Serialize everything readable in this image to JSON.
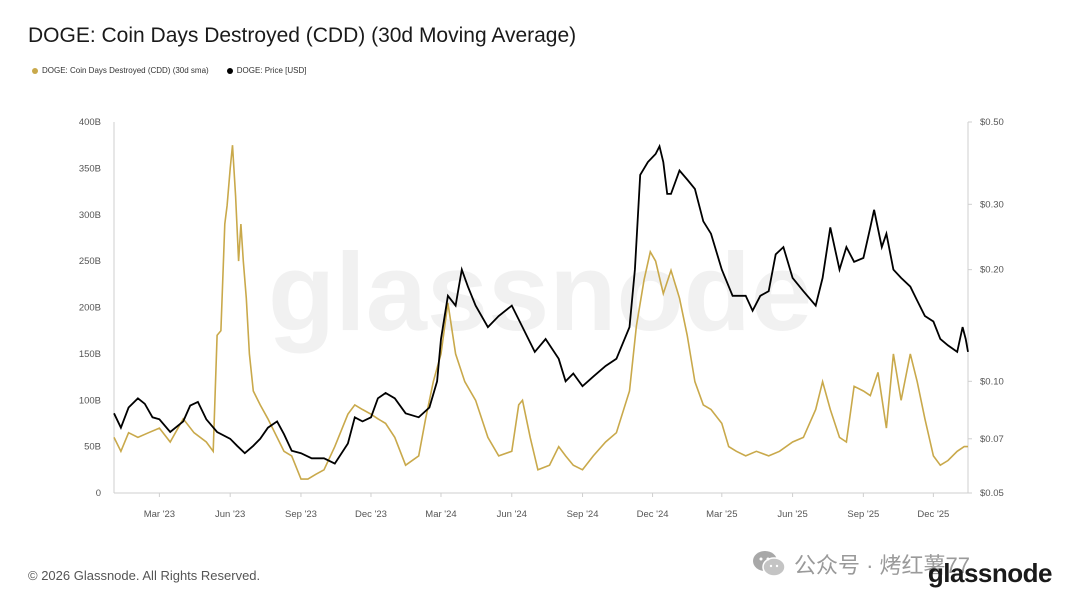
{
  "header": {
    "title": "DOGE: Coin Days Destroyed (CDD) (30d Moving Average)"
  },
  "legend": [
    {
      "label": "DOGE: Coin Days Destroyed (CDD) (30d sma)",
      "color": "#c9a94b"
    },
    {
      "label": "DOGE: Price [USD]",
      "color": "#000000"
    }
  ],
  "watermark": "glassnode",
  "footer": {
    "copyright": "© 2026 Glassnode. All Rights Reserved.",
    "brand": "glassnode"
  },
  "wechat": {
    "label": "公众号 · 烤红薯77"
  },
  "chart_data": {
    "type": "line",
    "title": "DOGE: Coin Days Destroyed (CDD) (30d Moving Average)",
    "x_range": [
      "2023-01-01",
      "2026-01-15"
    ],
    "x_ticks": [
      "Mar '23",
      "Jun '23",
      "Sep '23",
      "Dec '23",
      "Mar '24",
      "Jun '24",
      "Sep '24",
      "Dec '24",
      "Mar '25",
      "Jun '25",
      "Sep '25",
      "Dec '25"
    ],
    "y_left": {
      "range": [
        0,
        400
      ],
      "ticks": [
        "0",
        "50B",
        "100B",
        "150B",
        "200B",
        "250B",
        "300B",
        "350B",
        "400B"
      ],
      "unit": "B"
    },
    "y_right": {
      "scale": "log",
      "range": [
        0.05,
        0.5
      ],
      "ticks": [
        "$0.05",
        "$0.07",
        "$0.10",
        "$0.20",
        "$0.30",
        "$0.50"
      ]
    },
    "grid": false,
    "legend_position": "top-left",
    "series": [
      {
        "name": "DOGE: Coin Days Destroyed (CDD) (30d sma)",
        "axis": "left",
        "color": "#c9a94b",
        "points": [
          [
            "2023-01-01",
            60
          ],
          [
            "2023-01-10",
            45
          ],
          [
            "2023-01-20",
            65
          ],
          [
            "2023-02-01",
            60
          ],
          [
            "2023-02-15",
            65
          ],
          [
            "2023-03-01",
            70
          ],
          [
            "2023-03-15",
            55
          ],
          [
            "2023-04-01",
            80
          ],
          [
            "2023-04-15",
            65
          ],
          [
            "2023-05-01",
            55
          ],
          [
            "2023-05-10",
            45
          ],
          [
            "2023-05-15",
            170
          ],
          [
            "2023-05-20",
            175
          ],
          [
            "2023-05-25",
            290
          ],
          [
            "2023-05-28",
            310
          ],
          [
            "2023-06-01",
            350
          ],
          [
            "2023-06-04",
            375
          ],
          [
            "2023-06-08",
            320
          ],
          [
            "2023-06-12",
            250
          ],
          [
            "2023-06-15",
            290
          ],
          [
            "2023-06-18",
            250
          ],
          [
            "2023-06-22",
            210
          ],
          [
            "2023-06-26",
            150
          ],
          [
            "2023-07-01",
            110
          ],
          [
            "2023-07-10",
            95
          ],
          [
            "2023-07-20",
            80
          ],
          [
            "2023-08-01",
            60
          ],
          [
            "2023-08-10",
            45
          ],
          [
            "2023-08-20",
            40
          ],
          [
            "2023-09-01",
            15
          ],
          [
            "2023-09-10",
            15
          ],
          [
            "2023-09-20",
            20
          ],
          [
            "2023-10-01",
            25
          ],
          [
            "2023-10-15",
            50
          ],
          [
            "2023-11-01",
            85
          ],
          [
            "2023-11-10",
            95
          ],
          [
            "2023-11-20",
            90
          ],
          [
            "2023-12-01",
            85
          ],
          [
            "2023-12-10",
            80
          ],
          [
            "2023-12-20",
            75
          ],
          [
            "2024-01-01",
            60
          ],
          [
            "2024-01-15",
            30
          ],
          [
            "2024-02-01",
            40
          ],
          [
            "2024-02-10",
            80
          ],
          [
            "2024-02-20",
            120
          ],
          [
            "2024-03-01",
            150
          ],
          [
            "2024-03-10",
            205
          ],
          [
            "2024-03-20",
            150
          ],
          [
            "2024-04-01",
            120
          ],
          [
            "2024-04-15",
            100
          ],
          [
            "2024-05-01",
            60
          ],
          [
            "2024-05-15",
            40
          ],
          [
            "2024-06-01",
            45
          ],
          [
            "2024-06-10",
            95
          ],
          [
            "2024-06-15",
            100
          ],
          [
            "2024-06-25",
            60
          ],
          [
            "2024-07-05",
            25
          ],
          [
            "2024-07-20",
            30
          ],
          [
            "2024-08-01",
            50
          ],
          [
            "2024-08-10",
            40
          ],
          [
            "2024-08-20",
            30
          ],
          [
            "2024-09-01",
            25
          ],
          [
            "2024-09-15",
            40
          ],
          [
            "2024-10-01",
            55
          ],
          [
            "2024-10-15",
            65
          ],
          [
            "2024-11-01",
            110
          ],
          [
            "2024-11-10",
            180
          ],
          [
            "2024-11-20",
            230
          ],
          [
            "2024-11-28",
            260
          ],
          [
            "2024-12-05",
            250
          ],
          [
            "2024-12-15",
            215
          ],
          [
            "2024-12-25",
            240
          ],
          [
            "2025-01-05",
            210
          ],
          [
            "2025-01-15",
            170
          ],
          [
            "2025-01-25",
            120
          ],
          [
            "2025-02-05",
            95
          ],
          [
            "2025-02-15",
            90
          ],
          [
            "2025-03-01",
            75
          ],
          [
            "2025-03-10",
            50
          ],
          [
            "2025-03-20",
            45
          ],
          [
            "2025-04-01",
            40
          ],
          [
            "2025-04-15",
            45
          ],
          [
            "2025-05-01",
            40
          ],
          [
            "2025-05-15",
            45
          ],
          [
            "2025-06-01",
            55
          ],
          [
            "2025-06-15",
            60
          ],
          [
            "2025-07-01",
            90
          ],
          [
            "2025-07-10",
            120
          ],
          [
            "2025-07-20",
            90
          ],
          [
            "2025-08-01",
            60
          ],
          [
            "2025-08-10",
            55
          ],
          [
            "2025-08-20",
            115
          ],
          [
            "2025-09-01",
            110
          ],
          [
            "2025-09-10",
            105
          ],
          [
            "2025-09-20",
            130
          ],
          [
            "2025-10-01",
            70
          ],
          [
            "2025-10-10",
            150
          ],
          [
            "2025-10-20",
            100
          ],
          [
            "2025-11-01",
            150
          ],
          [
            "2025-11-10",
            120
          ],
          [
            "2025-11-20",
            80
          ],
          [
            "2025-12-01",
            40
          ],
          [
            "2025-12-10",
            30
          ],
          [
            "2025-12-20",
            35
          ],
          [
            "2026-01-01",
            45
          ],
          [
            "2026-01-10",
            50
          ],
          [
            "2026-01-15",
            50
          ]
        ]
      },
      {
        "name": "DOGE: Price [USD]",
        "axis": "right",
        "color": "#000000",
        "points": [
          [
            "2023-01-01",
            0.082
          ],
          [
            "2023-01-10",
            0.075
          ],
          [
            "2023-01-20",
            0.085
          ],
          [
            "2023-02-01",
            0.09
          ],
          [
            "2023-02-10",
            0.087
          ],
          [
            "2023-02-20",
            0.08
          ],
          [
            "2023-03-01",
            0.079
          ],
          [
            "2023-03-15",
            0.073
          ],
          [
            "2023-04-01",
            0.078
          ],
          [
            "2023-04-10",
            0.086
          ],
          [
            "2023-04-20",
            0.088
          ],
          [
            "2023-05-01",
            0.079
          ],
          [
            "2023-05-15",
            0.073
          ],
          [
            "2023-06-01",
            0.07
          ],
          [
            "2023-06-10",
            0.067
          ],
          [
            "2023-06-20",
            0.064
          ],
          [
            "2023-07-01",
            0.067
          ],
          [
            "2023-07-10",
            0.07
          ],
          [
            "2023-07-20",
            0.075
          ],
          [
            "2023-08-01",
            0.078
          ],
          [
            "2023-08-10",
            0.072
          ],
          [
            "2023-08-20",
            0.065
          ],
          [
            "2023-09-01",
            0.064
          ],
          [
            "2023-09-15",
            0.062
          ],
          [
            "2023-10-01",
            0.062
          ],
          [
            "2023-10-15",
            0.06
          ],
          [
            "2023-11-01",
            0.068
          ],
          [
            "2023-11-10",
            0.08
          ],
          [
            "2023-11-20",
            0.078
          ],
          [
            "2023-12-01",
            0.08
          ],
          [
            "2023-12-10",
            0.09
          ],
          [
            "2023-12-20",
            0.093
          ],
          [
            "2024-01-01",
            0.09
          ],
          [
            "2024-01-15",
            0.082
          ],
          [
            "2024-02-01",
            0.08
          ],
          [
            "2024-02-15",
            0.085
          ],
          [
            "2024-02-25",
            0.1
          ],
          [
            "2024-03-01",
            0.13
          ],
          [
            "2024-03-10",
            0.17
          ],
          [
            "2024-03-20",
            0.16
          ],
          [
            "2024-03-28",
            0.2
          ],
          [
            "2024-04-05",
            0.18
          ],
          [
            "2024-04-15",
            0.16
          ],
          [
            "2024-05-01",
            0.14
          ],
          [
            "2024-05-15",
            0.15
          ],
          [
            "2024-06-01",
            0.16
          ],
          [
            "2024-06-15",
            0.14
          ],
          [
            "2024-07-01",
            0.12
          ],
          [
            "2024-07-15",
            0.13
          ],
          [
            "2024-08-01",
            0.115
          ],
          [
            "2024-08-10",
            0.1
          ],
          [
            "2024-08-20",
            0.105
          ],
          [
            "2024-09-01",
            0.097
          ],
          [
            "2024-09-15",
            0.103
          ],
          [
            "2024-10-01",
            0.11
          ],
          [
            "2024-10-15",
            0.115
          ],
          [
            "2024-11-01",
            0.14
          ],
          [
            "2024-11-08",
            0.2
          ],
          [
            "2024-11-15",
            0.36
          ],
          [
            "2024-11-25",
            0.39
          ],
          [
            "2024-12-05",
            0.41
          ],
          [
            "2024-12-10",
            0.43
          ],
          [
            "2024-12-15",
            0.39
          ],
          [
            "2024-12-20",
            0.32
          ],
          [
            "2024-12-25",
            0.32
          ],
          [
            "2025-01-05",
            0.37
          ],
          [
            "2025-01-15",
            0.35
          ],
          [
            "2025-01-25",
            0.33
          ],
          [
            "2025-02-05",
            0.27
          ],
          [
            "2025-02-15",
            0.25
          ],
          [
            "2025-03-01",
            0.2
          ],
          [
            "2025-03-15",
            0.17
          ],
          [
            "2025-04-01",
            0.17
          ],
          [
            "2025-04-10",
            0.155
          ],
          [
            "2025-04-20",
            0.17
          ],
          [
            "2025-05-01",
            0.175
          ],
          [
            "2025-05-10",
            0.22
          ],
          [
            "2025-05-20",
            0.23
          ],
          [
            "2025-06-01",
            0.19
          ],
          [
            "2025-06-15",
            0.175
          ],
          [
            "2025-07-01",
            0.16
          ],
          [
            "2025-07-10",
            0.19
          ],
          [
            "2025-07-20",
            0.26
          ],
          [
            "2025-08-01",
            0.2
          ],
          [
            "2025-08-10",
            0.23
          ],
          [
            "2025-08-20",
            0.21
          ],
          [
            "2025-09-01",
            0.215
          ],
          [
            "2025-09-10",
            0.26
          ],
          [
            "2025-09-15",
            0.29
          ],
          [
            "2025-09-25",
            0.23
          ],
          [
            "2025-10-01",
            0.25
          ],
          [
            "2025-10-10",
            0.2
          ],
          [
            "2025-10-20",
            0.19
          ],
          [
            "2025-11-01",
            0.18
          ],
          [
            "2025-11-10",
            0.165
          ],
          [
            "2025-11-20",
            0.15
          ],
          [
            "2025-12-01",
            0.145
          ],
          [
            "2025-12-10",
            0.13
          ],
          [
            "2025-12-20",
            0.125
          ],
          [
            "2026-01-01",
            0.12
          ],
          [
            "2026-01-08",
            0.14
          ],
          [
            "2026-01-12",
            0.13
          ],
          [
            "2026-01-15",
            0.12
          ]
        ]
      }
    ]
  }
}
